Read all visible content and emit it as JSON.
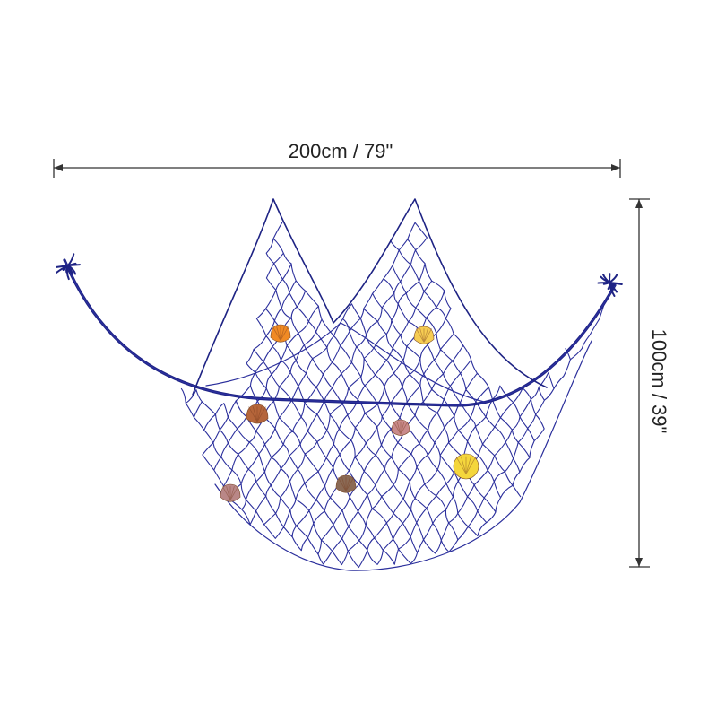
{
  "dimensions": {
    "width_label": "200cm / 79\"",
    "height_label": "100cm / 39\""
  },
  "colors": {
    "net": "#2b2f9c",
    "net_dark": "#1e2384",
    "dimension_line": "#333333",
    "background": "#ffffff"
  },
  "shells": [
    {
      "name": "orange-scallop-shell",
      "color": "#f08a24"
    },
    {
      "name": "yellow-scallop-shell",
      "color": "#f6cc52"
    },
    {
      "name": "brown-scallop-shell",
      "color": "#b5653a"
    },
    {
      "name": "pink-scallop-shell",
      "color": "#c98a8a"
    },
    {
      "name": "yellow-round-shell",
      "color": "#f4d63c"
    },
    {
      "name": "mauve-scallop-shell",
      "color": "#b98787"
    },
    {
      "name": "spotted-brown-shell",
      "color": "#8b6a55"
    }
  ]
}
